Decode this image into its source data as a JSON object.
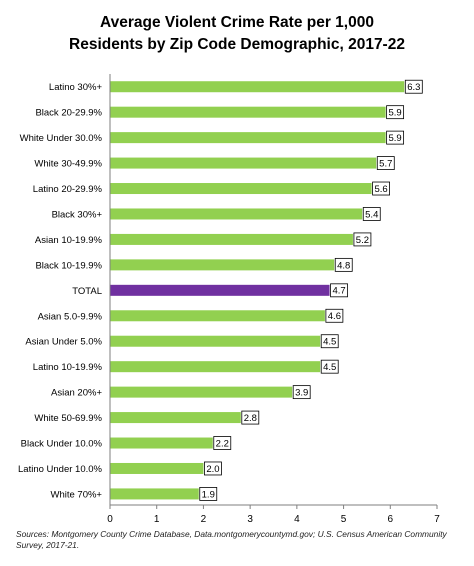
{
  "chart_data": {
    "type": "bar",
    "orientation": "horizontal",
    "title_lines": [
      "Average Violent Crime Rate per 1,000",
      "Residents by Zip Code Demographic, 2017-22"
    ],
    "categories": [
      "Latino 30%+",
      "Black 20-29.9%",
      "White Under 30.0%",
      "White 30-49.9%",
      "Latino 20-29.9%",
      "Black 30%+",
      "Asian 10-19.9%",
      "Black 10-19.9%",
      "TOTAL",
      "Asian 5.0-9.9%",
      "Asian Under 5.0%",
      "Latino 10-19.9%",
      "Asian 20%+",
      "White 50-69.9%",
      "Black Under 10.0%",
      "Latino Under 10.0%",
      "White 70%+"
    ],
    "values": [
      6.3,
      5.9,
      5.9,
      5.7,
      5.6,
      5.4,
      5.2,
      4.8,
      4.7,
      4.6,
      4.5,
      4.5,
      3.9,
      2.8,
      2.2,
      2.0,
      1.9
    ],
    "data_labels": [
      "6.3",
      "5.9",
      "5.9",
      "5.7",
      "5.6",
      "5.4",
      "5.2",
      "4.8",
      "4.7",
      "4.6",
      "4.5",
      "4.5",
      "3.9",
      "2.8",
      "2.2",
      "2.0",
      "1.9"
    ],
    "highlight_category": "TOTAL",
    "xlim": [
      0,
      7
    ],
    "xticks": [
      0,
      1,
      2,
      3,
      4,
      5,
      6,
      7
    ],
    "xtick_labels": [
      "0",
      "1",
      "2",
      "3",
      "4",
      "5",
      "6",
      "7"
    ],
    "xlabel": "",
    "ylabel": "",
    "grid": false,
    "legend": "none",
    "colors": {
      "bar": "#92d050",
      "highlight": "#7030a0",
      "axis": "#7f7f7f",
      "label_border": "#000000"
    }
  },
  "source_note": "Sources: Montgomery County Crime Database, Data.montgomerycountymd.gov; U.S. Census American Community Survey, 2017-21."
}
